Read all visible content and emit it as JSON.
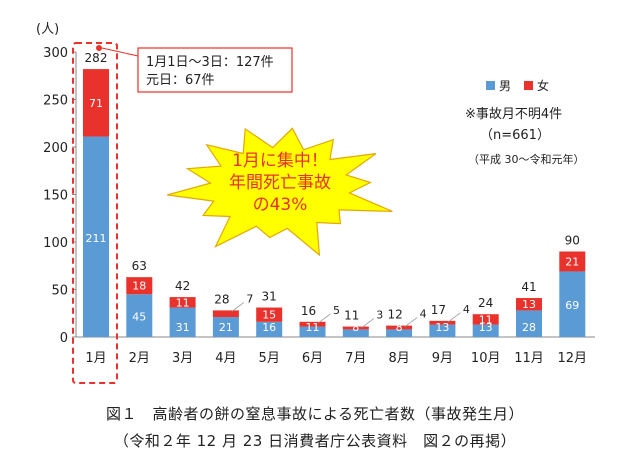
{
  "chart_data": {
    "type": "bar",
    "stacked": true,
    "categories": [
      "1月",
      "2月",
      "3月",
      "4月",
      "5月",
      "6月",
      "7月",
      "8月",
      "9月",
      "10月",
      "11月",
      "12月"
    ],
    "series": [
      {
        "name": "男",
        "color": "#5b9bd5",
        "values": [
          211,
          45,
          31,
          21,
          16,
          11,
          8,
          8,
          13,
          13,
          28,
          69
        ]
      },
      {
        "name": "女",
        "color": "#e8322b",
        "values": [
          71,
          18,
          11,
          7,
          15,
          5,
          3,
          4,
          4,
          11,
          13,
          21
        ]
      }
    ],
    "totals": [
      282,
      63,
      42,
      28,
      31,
      16,
      11,
      12,
      17,
      24,
      41,
      90
    ],
    "ylabel": "(人)",
    "ylim": [
      0,
      300
    ],
    "yticks": [
      0,
      50,
      100,
      150,
      200,
      250,
      300
    ],
    "legend_position": "top-right",
    "grid": false,
    "callout_text": [
      "1月1日～3日：127件",
      "元日：67件"
    ],
    "starburst_text": [
      "1月に集中！",
      "年間死亡事故",
      "の43%"
    ],
    "starburst_color": "#ffff00",
    "note_lines": [
      "※事故月不明4件",
      "（n=661）",
      "（平成 30～令和元年）"
    ]
  },
  "caption": {
    "line1": "図１　高齢者の餅の窒息事故による死亡者数（事故発生月）",
    "line2": "（令和２年 12 月 23 日消費者庁公表資料　図２の再掲）"
  }
}
